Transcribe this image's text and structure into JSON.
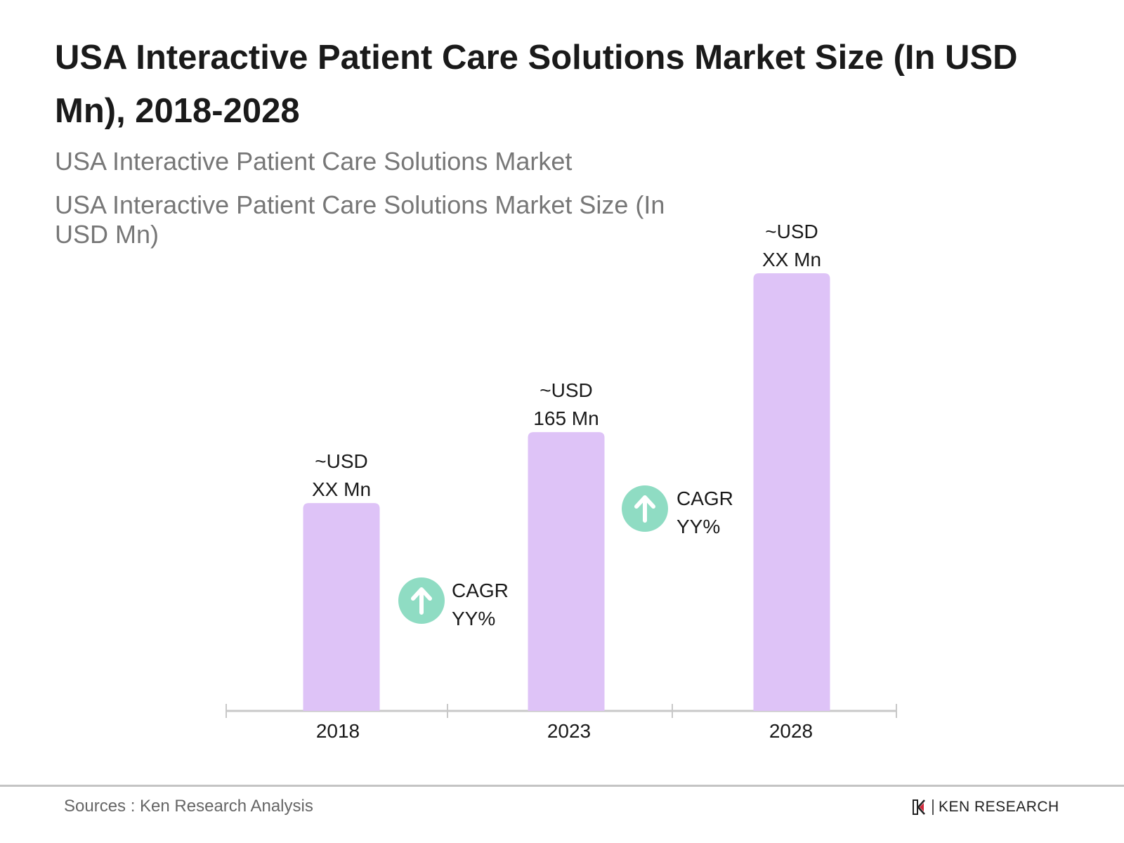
{
  "chart_data": {
    "type": "bar",
    "title": "USA Interactive Patient Care Solutions Market Size (In USD Mn), 2018-2028",
    "subtitle": "USA Interactive Patient Care Solutions Market",
    "series_title": "USA Interactive Patient Care Solutions Market Size (In USD Mn)",
    "categories": [
      "2018",
      "2023",
      "2028"
    ],
    "values": [
      123,
      165,
      259
    ],
    "data_labels": [
      {
        "line1": "~USD",
        "line2": "XX Mn"
      },
      {
        "line1": "~USD",
        "line2": "165 Mn"
      },
      {
        "line1": "~USD",
        "line2": "XX Mn"
      }
    ],
    "annotations": [
      {
        "icon": "arrow-up-circle-icon",
        "line1": "CAGR",
        "line2": "YY%",
        "between": [
          "2018",
          "2023"
        ]
      },
      {
        "icon": "arrow-up-circle-icon",
        "line1": "CAGR",
        "line2": "YY%",
        "between": [
          "2023",
          "2028"
        ]
      }
    ],
    "ylim": [
      0,
      259
    ],
    "grid": false,
    "colors": {
      "bar": "#dec3f7",
      "cagr_circle": "#8fdcc3",
      "axis": "#c8c8c8"
    }
  },
  "footer": {
    "source": "Sources : Ken Research Analysis",
    "logo_text": "KEN RESEARCH"
  }
}
